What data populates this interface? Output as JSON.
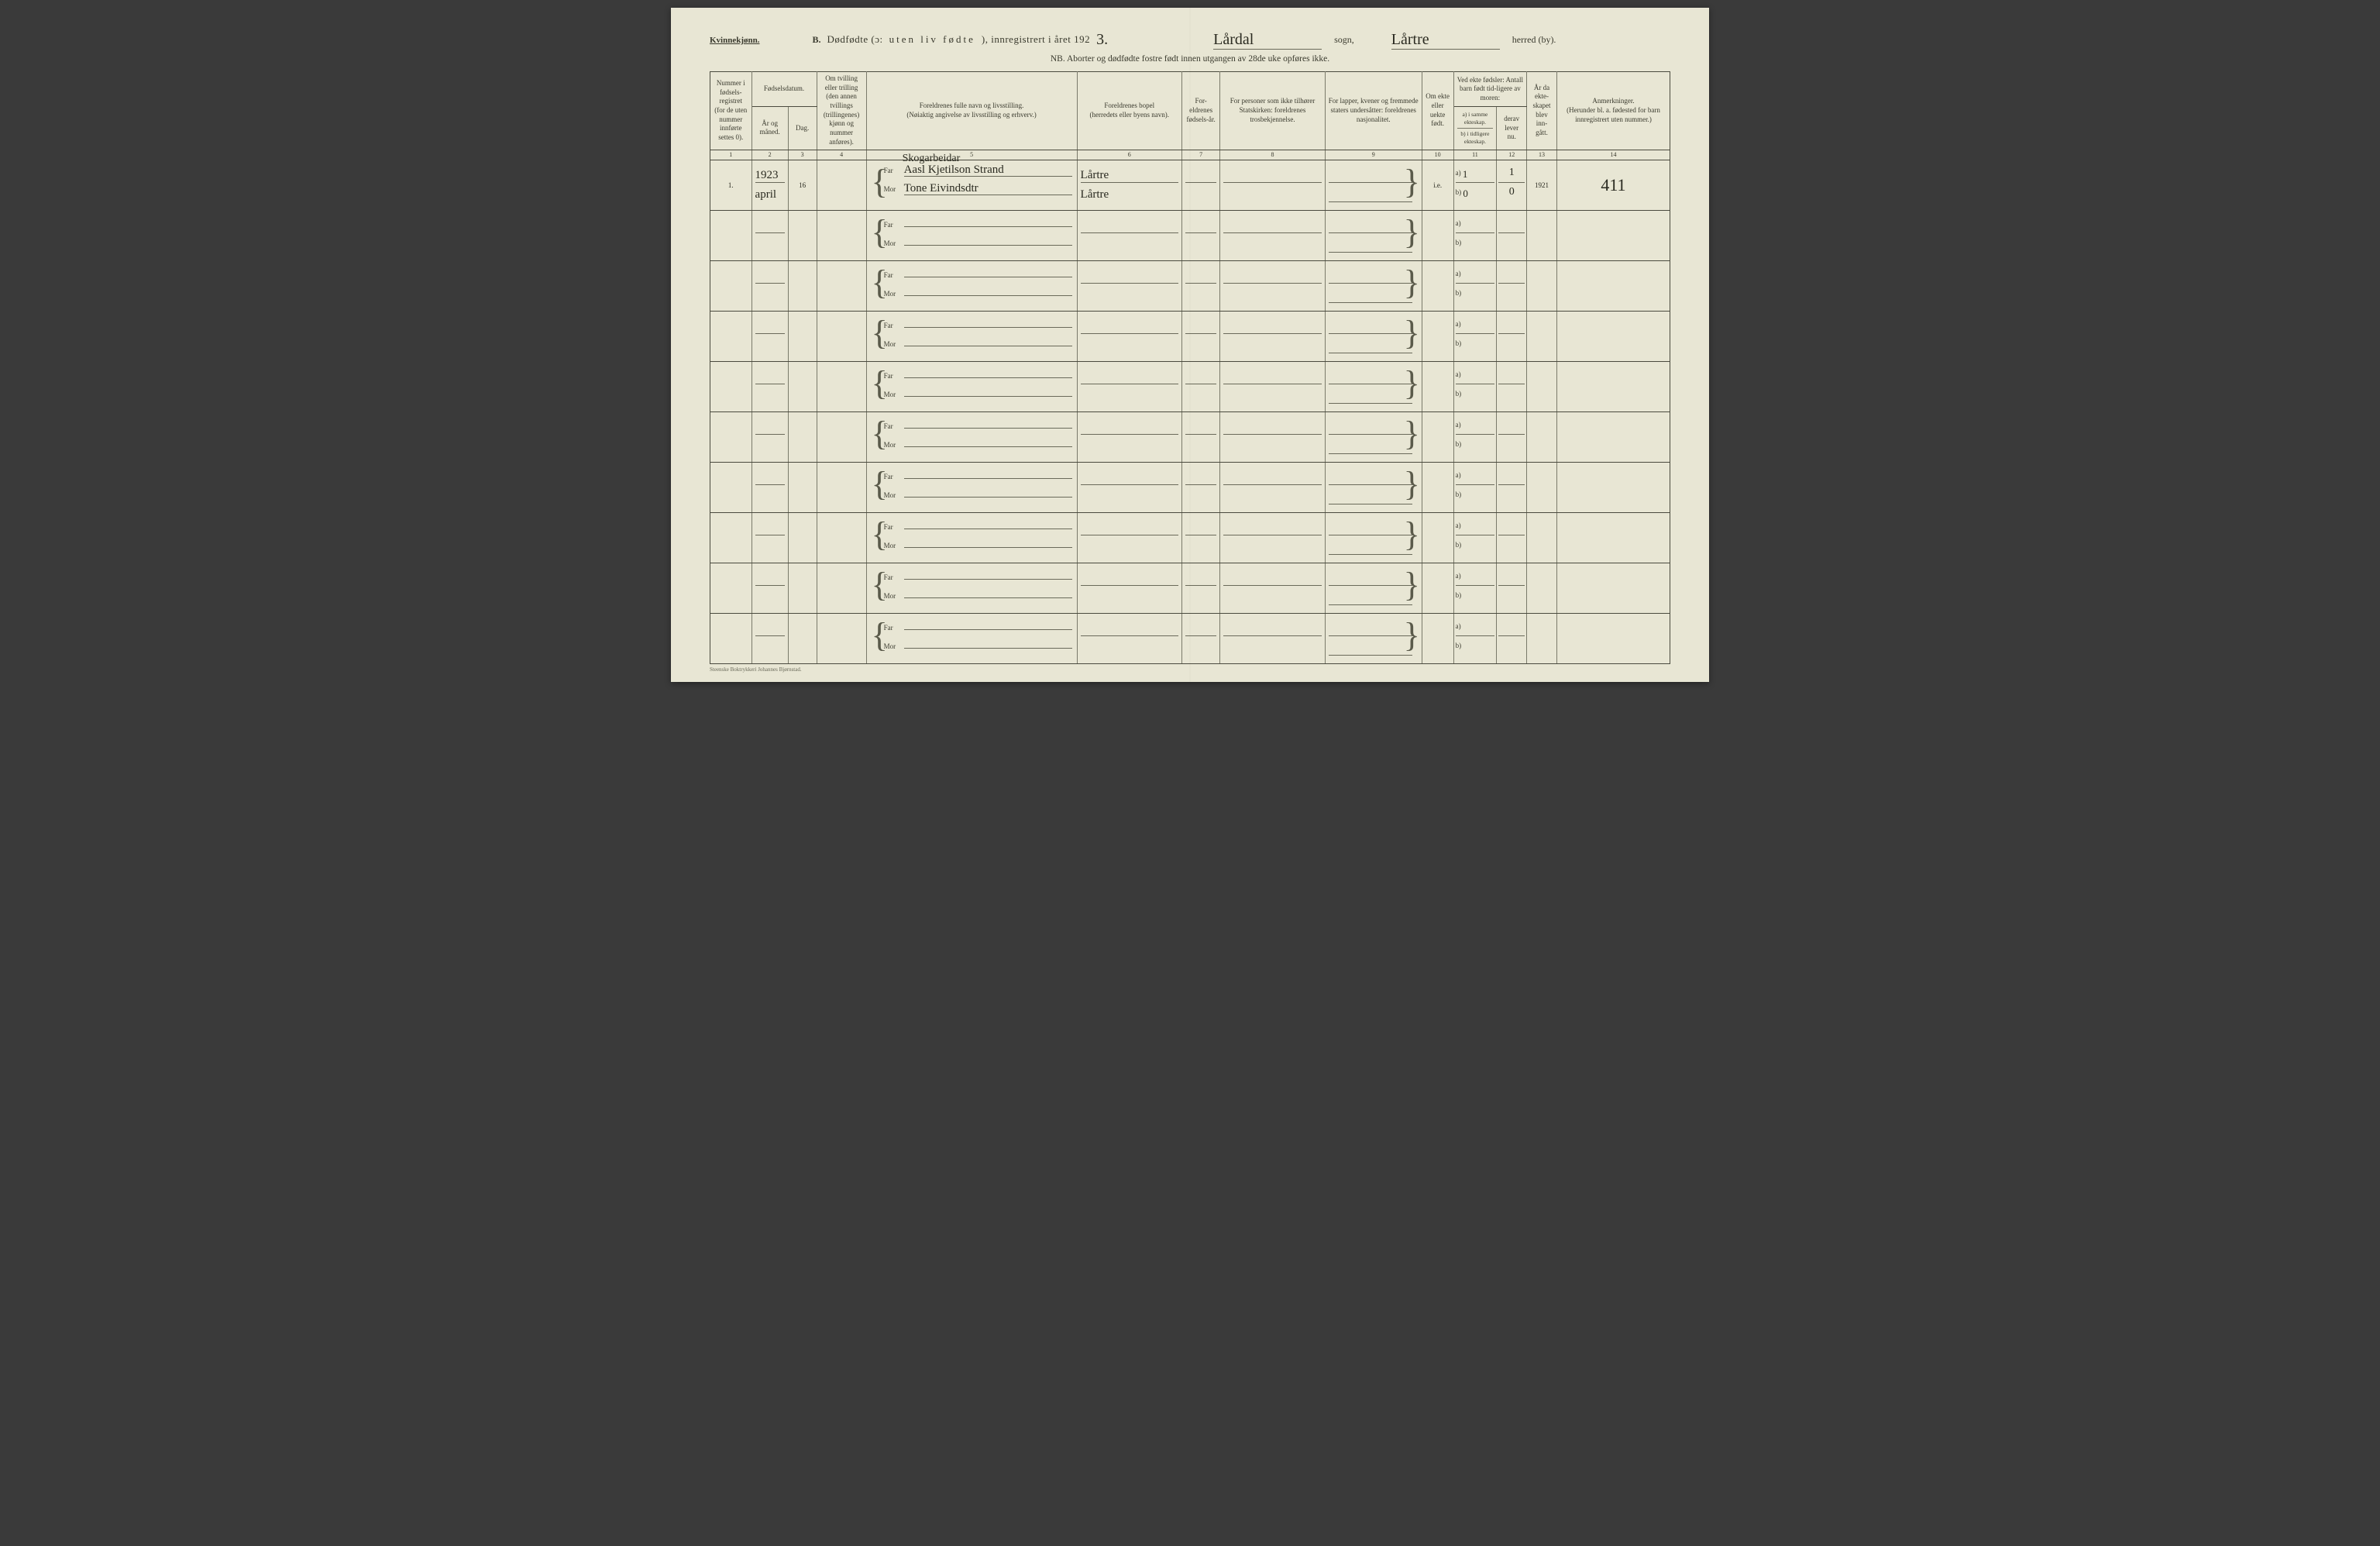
{
  "header": {
    "gender_label": "Kvinnekjønn.",
    "section": "B.",
    "title_main": "Dødfødte (ɔ:",
    "title_spaced": "uten liv fødte",
    "title_tail": "), innregistrert i året 192",
    "year_digit": "3.",
    "sogn_hw": "Lårdal",
    "sogn_label": "sogn,",
    "herred_hw": "Lårtre",
    "herred_label": "herred (by).",
    "subheader": "NB.  Aborter og dødfødte fostre født innen utgangen av 28de uke opføres ikke."
  },
  "columns": {
    "c1": "Nummer i fødsels-registret (for de uten nummer innførte settes 0).",
    "c2_top": "Fødselsdatum.",
    "c2a": "År og måned.",
    "c2b": "Dag.",
    "c4": "Om tvilling eller trilling (den annen tvillings (trillingenes) kjønn og nummer anføres).",
    "c5": "Foreldrenes fulle navn og livsstilling.\n(Nøiaktig angivelse av livsstilling og erhverv.)",
    "c6": "Foreldrenes bopel\n(herredets eller byens navn).",
    "c7": "For-eldrenes fødsels-år.",
    "c8": "For personer som ikke tilhører Statskirken: foreldrenes trosbekjennelse.",
    "c9": "For lapper, kvener og fremmede staters undersåtter: foreldrenes nasjonalitet.",
    "c10": "Om ekte eller uekte født.",
    "c11_top": "Ved ekte fødsler: Antall barn født tid-ligere av moren:",
    "c11a": "a) i samme ekteskap.",
    "c11b": "b) i tidligere ekteskap.",
    "c12": "derav lever nu.",
    "c13": "År da ekte-skapet blev inn-gått.",
    "c14": "Anmerkninger.\n(Herunder bl. a. fødested for barn innregistrert uten nummer.)",
    "nums": [
      "1",
      "2",
      "3",
      "4",
      "5",
      "6",
      "7",
      "8",
      "9",
      "10",
      "11",
      "12",
      "13",
      "14"
    ]
  },
  "labels": {
    "far": "Far",
    "mor": "Mor",
    "a": "a)",
    "b": "b)"
  },
  "rows": [
    {
      "num": "1.",
      "year_month_top": "1923",
      "year_month_bot": "april",
      "day": "16",
      "occupation": "Skogarbeidar",
      "far_name": "Aasl Kjetilson Strand",
      "mor_name": "Tone Eivindsdtr",
      "far_place": "Lårtre",
      "mor_place": "Lårtre",
      "ekte": "i.e.",
      "a_same": "1",
      "a_lever": "1",
      "b_prev": "0",
      "b_lever": "0",
      "marriage_year": "1921",
      "note": "411"
    },
    {},
    {},
    {},
    {},
    {},
    {},
    {},
    {},
    {}
  ],
  "footer": "Steenske Boktrykkeri Johannes Bjørnstad."
}
